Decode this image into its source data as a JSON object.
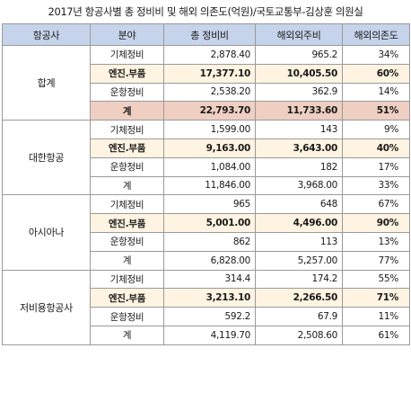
{
  "title": "2017년 항공사별 총 정비비 및 해외 의존도(억원)/국토교통부-김상훈 의원실",
  "headers": [
    "항공사",
    "분야",
    "총 정비비",
    "해외외주비",
    "해외의존도"
  ],
  "groups": [
    {
      "name": "합계",
      "rows": [
        {
          "cat": "기체정비",
          "total": "2,878.40",
          "overseas": "965.2",
          "pct": "34%"
        },
        {
          "cat": "엔진.부품",
          "total": "17,377.10",
          "overseas": "10,405.50",
          "pct": "60%"
        },
        {
          "cat": "운항정비",
          "total": "2,538.20",
          "overseas": "362.9",
          "pct": "14%"
        },
        {
          "cat": "계",
          "total": "22,793.70",
          "overseas": "11,733.60",
          "pct": "51%"
        }
      ]
    },
    {
      "name": "대한항공",
      "rows": [
        {
          "cat": "기체정비",
          "total": "1,599.00",
          "overseas": "143",
          "pct": "9%"
        },
        {
          "cat": "엔진.부품",
          "total": "9,163.00",
          "overseas": "3,643.00",
          "pct": "40%"
        },
        {
          "cat": "운항정비",
          "total": "1,084.00",
          "overseas": "182",
          "pct": "17%"
        },
        {
          "cat": "계",
          "total": "11,846.00",
          "overseas": "3,968.00",
          "pct": "33%"
        }
      ]
    },
    {
      "name": "아시아나",
      "rows": [
        {
          "cat": "기체정비",
          "total": "965",
          "overseas": "648",
          "pct": "67%"
        },
        {
          "cat": "엔진.부품",
          "total": "5,001.00",
          "overseas": "4,496.00",
          "pct": "90%"
        },
        {
          "cat": "운항정비",
          "total": "862",
          "overseas": "113",
          "pct": "13%"
        },
        {
          "cat": "계",
          "total": "6,828.00",
          "overseas": "5,257.00",
          "pct": "77%"
        }
      ]
    },
    {
      "name": "저비용항공사",
      "rows": [
        {
          "cat": "기체정비",
          "total": "314.4",
          "overseas": "174.2",
          "pct": "55%"
        },
        {
          "cat": "엔진.부품",
          "total": "3,213.10",
          "overseas": "2,266.50",
          "pct": "71%"
        },
        {
          "cat": "운항정비",
          "total": "592.2",
          "overseas": "67.9",
          "pct": "11%"
        },
        {
          "cat": "계",
          "total": "4,119.70",
          "overseas": "2,508.60",
          "pct": "61%"
        }
      ]
    }
  ],
  "colors": {
    "header_bg": "#c5d4ea",
    "engine_row_bg": "#fff4e1",
    "total_row_bg": "#eecfc2",
    "border": "#9a9a9a"
  }
}
